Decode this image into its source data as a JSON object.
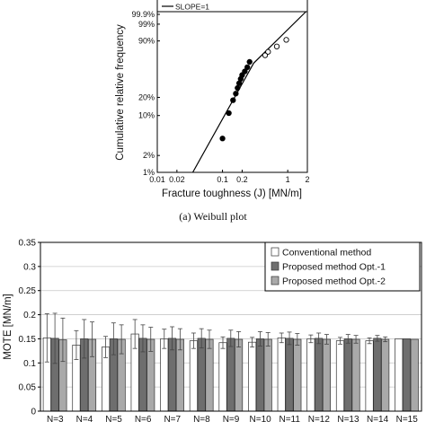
{
  "figure_a": {
    "legend": {
      "line_label": "SLOPE=1"
    },
    "caption": "(a) Weibull plot"
  },
  "chart_data": [
    {
      "type": "scatter",
      "title": "",
      "xlabel": "Fracture toughness (J) [MN/m]",
      "ylabel": "Cumulative relative frequency",
      "x_scale": "log",
      "y_scale": "weibull",
      "xlim": [
        0.01,
        2
      ],
      "x_ticks": [
        0.01,
        0.02,
        0.1,
        0.2,
        1,
        2
      ],
      "x_tick_labels": [
        "0.01",
        "0.02",
        "0.1",
        "0.2",
        "1",
        "2"
      ],
      "y_ticks": [
        1,
        2,
        10,
        20,
        90,
        99,
        99.9
      ],
      "y_tick_labels": [
        "1%",
        "2%",
        "10%",
        "20%",
        "90%",
        "99%",
        "99.9%"
      ],
      "series": [
        {
          "marker": "filled",
          "points": [
            [
              0.1,
              4
            ],
            [
              0.125,
              11
            ],
            [
              0.145,
              18
            ],
            [
              0.16,
              23
            ],
            [
              0.17,
              28
            ],
            [
              0.18,
              33
            ],
            [
              0.19,
              38
            ],
            [
              0.2,
              43
            ],
            [
              0.22,
              48
            ],
            [
              0.24,
              54
            ],
            [
              0.26,
              62
            ]
          ]
        },
        {
          "marker": "open",
          "points": [
            [
              0.45,
              72
            ],
            [
              0.5,
              77
            ],
            [
              0.68,
              84
            ],
            [
              0.95,
              91
            ]
          ]
        },
        {
          "name": "SLOPE=1",
          "marker": "line",
          "points": [
            [
              0.035,
              1
            ],
            [
              0.3,
              60
            ],
            [
              1.9,
              99.99
            ]
          ]
        }
      ]
    },
    {
      "type": "bar",
      "title": "",
      "xlabel": "",
      "ylabel": "MOTE [MN/m]",
      "ylim": [
        0,
        0.35
      ],
      "y_ticks": [
        0,
        0.05,
        0.1,
        0.15,
        0.2,
        0.25,
        0.3,
        0.35
      ],
      "y_tick_labels": [
        "0",
        "0.05",
        "0.1",
        "0.15",
        "0.2",
        "0.25",
        "0.3",
        "0.35"
      ],
      "categories": [
        "N=3",
        "N=4",
        "N=5",
        "N=6",
        "N=7",
        "N=8",
        "N=9",
        "N=10",
        "N=11",
        "N=12",
        "N=13",
        "N=14",
        "N=15"
      ],
      "legend_position": "top-right",
      "grid": true,
      "series": [
        {
          "name": "Conventional method",
          "color": "#ffffff",
          "values": [
            0.152,
            0.137,
            0.133,
            0.16,
            0.15,
            0.146,
            0.142,
            0.143,
            0.152,
            0.15,
            0.146,
            0.146,
            0.15
          ],
          "errors": [
            0.05,
            0.03,
            0.022,
            0.03,
            0.02,
            0.016,
            0.012,
            0.01,
            0.01,
            0.008,
            0.007,
            0.006,
            0.0
          ]
        },
        {
          "name": "Proposed method Opt.-1",
          "color": "#6e6e6e",
          "values": [
            0.151,
            0.15,
            0.15,
            0.151,
            0.151,
            0.151,
            0.151,
            0.15,
            0.151,
            0.151,
            0.15,
            0.151,
            0.15
          ],
          "errors": [
            0.052,
            0.04,
            0.033,
            0.028,
            0.024,
            0.02,
            0.017,
            0.015,
            0.013,
            0.011,
            0.009,
            0.006,
            0.0
          ]
        },
        {
          "name": "Proposed method Opt.-2",
          "color": "#a9a9a9",
          "values": [
            0.148,
            0.149,
            0.149,
            0.149,
            0.149,
            0.149,
            0.149,
            0.149,
            0.149,
            0.149,
            0.149,
            0.149,
            0.149
          ],
          "errors": [
            0.045,
            0.036,
            0.03,
            0.025,
            0.022,
            0.019,
            0.016,
            0.014,
            0.012,
            0.01,
            0.008,
            0.005,
            0.0
          ]
        }
      ]
    }
  ]
}
